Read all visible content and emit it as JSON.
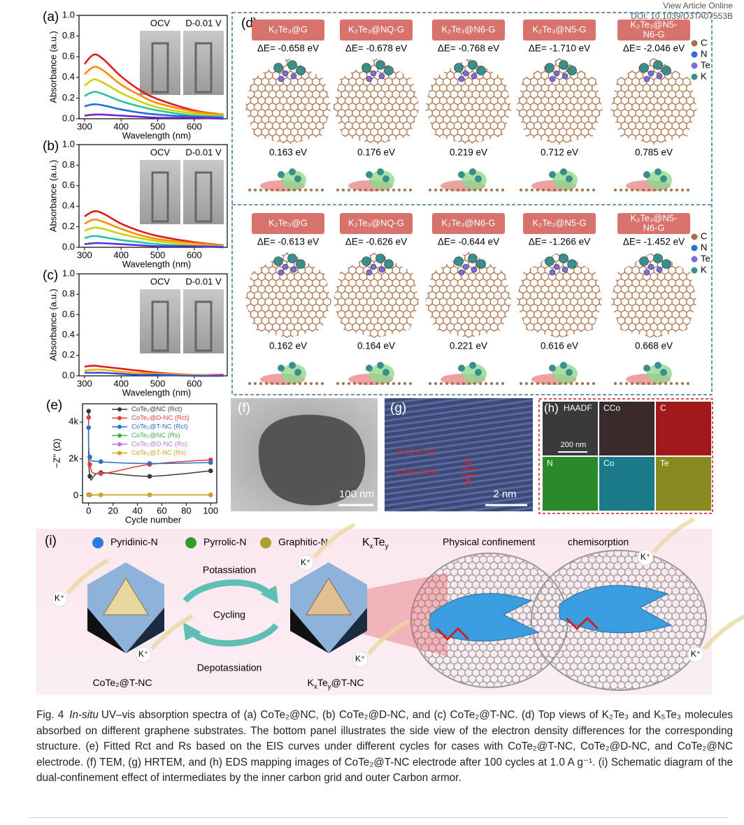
{
  "header": {
    "link": "View Article Online",
    "doi": "DOI: 10.1039/D3TA07553B"
  },
  "chart_data": [
    {
      "type": "line",
      "panel_label": "(a)",
      "xlabel": "Wavelength (nm)",
      "ylabel": "Absorbance (a.u.)",
      "x": [
        300,
        325,
        350,
        400,
        450,
        500,
        600,
        680
      ],
      "series": [
        {
          "color": "#e31a1c",
          "values": [
            0.53,
            0.62,
            0.58,
            0.41,
            0.28,
            0.19,
            0.08,
            0.04
          ]
        },
        {
          "color": "#ff8c00",
          "values": [
            0.43,
            0.5,
            0.47,
            0.33,
            0.23,
            0.15,
            0.07,
            0.04
          ]
        },
        {
          "color": "#c8d400",
          "values": [
            0.32,
            0.38,
            0.35,
            0.25,
            0.17,
            0.11,
            0.05,
            0.03
          ]
        },
        {
          "color": "#22c8a0",
          "values": [
            0.22,
            0.26,
            0.24,
            0.17,
            0.12,
            0.08,
            0.03,
            0.02
          ]
        },
        {
          "color": "#1e6fe0",
          "values": [
            0.12,
            0.14,
            0.13,
            0.09,
            0.06,
            0.04,
            0.02,
            0.01
          ]
        },
        {
          "color": "#7b1fd0",
          "values": [
            0.03,
            0.04,
            0.04,
            0.03,
            0.02,
            0.01,
            0.01,
            0.0
          ]
        }
      ],
      "xlim": [
        285,
        690
      ],
      "ylim": [
        0,
        1
      ],
      "xticks": [
        300,
        400,
        500,
        600
      ],
      "yticks": [
        {
          "value": 0,
          "label": "0.0"
        },
        {
          "value": 0.2,
          "label": "0.2"
        },
        {
          "value": 0.4,
          "label": "0.4"
        },
        {
          "value": 0.6,
          "label": "0.6"
        },
        {
          "value": 0.8,
          "label": "0.8"
        },
        {
          "value": 1,
          "label": "1.0"
        }
      ],
      "photo_labels": [
        "OCV",
        "D-0.01 V"
      ]
    },
    {
      "type": "line",
      "panel_label": "(b)",
      "xlabel": "Wavelength (nm)",
      "ylabel": "Absorbance (a.u.)",
      "x": [
        300,
        325,
        350,
        400,
        450,
        500,
        600,
        680
      ],
      "series": [
        {
          "color": "#e31a1c",
          "values": [
            0.3,
            0.35,
            0.33,
            0.23,
            0.16,
            0.11,
            0.05,
            0.02
          ]
        },
        {
          "color": "#ff8c00",
          "values": [
            0.23,
            0.27,
            0.25,
            0.18,
            0.12,
            0.08,
            0.04,
            0.02
          ]
        },
        {
          "color": "#c8d400",
          "values": [
            0.16,
            0.19,
            0.18,
            0.13,
            0.09,
            0.06,
            0.02,
            0.01
          ]
        },
        {
          "color": "#22c8a0",
          "values": [
            0.09,
            0.11,
            0.1,
            0.07,
            0.05,
            0.03,
            0.01,
            0.01
          ]
        },
        {
          "color": "#5a2fe0",
          "values": [
            0.03,
            0.04,
            0.04,
            0.03,
            0.02,
            0.01,
            0.01,
            0.0
          ]
        }
      ],
      "xlim": [
        285,
        690
      ],
      "ylim": [
        0,
        1
      ],
      "xticks": [
        300,
        400,
        500,
        600
      ],
      "yticks": [
        {
          "value": 0,
          "label": "0.0"
        },
        {
          "value": 0.2,
          "label": "0.2"
        },
        {
          "value": 0.4,
          "label": "0.4"
        },
        {
          "value": 0.6,
          "label": "0.6"
        },
        {
          "value": 0.8,
          "label": "0.8"
        },
        {
          "value": 1,
          "label": "1.0"
        }
      ],
      "photo_labels": [
        "OCV",
        "D-0.01 V"
      ]
    },
    {
      "type": "line",
      "panel_label": "(c)",
      "xlabel": "Wavelength (nm)",
      "ylabel": "Absorbance (a.u.)",
      "x": [
        300,
        325,
        350,
        400,
        450,
        500,
        600,
        680
      ],
      "series": [
        {
          "color": "#e31a1c",
          "values": [
            0.09,
            0.1,
            0.09,
            0.07,
            0.05,
            0.03,
            0.01,
            0.01
          ]
        },
        {
          "color": "#ffb000",
          "values": [
            0.05,
            0.06,
            0.06,
            0.04,
            0.03,
            0.02,
            0.01,
            0.0
          ]
        },
        {
          "color": "#3050e0",
          "values": [
            0.03,
            0.03,
            0.03,
            0.02,
            0.01,
            0.01,
            0.0,
            0.0
          ]
        }
      ],
      "xlim": [
        285,
        690
      ],
      "ylim": [
        0,
        1
      ],
      "xticks": [
        300,
        400,
        500,
        600
      ],
      "yticks": [
        {
          "value": 0,
          "label": "0.0"
        },
        {
          "value": 0.2,
          "label": "0.2"
        },
        {
          "value": 0.4,
          "label": "0.4"
        },
        {
          "value": 0.6,
          "label": "0.6"
        },
        {
          "value": 0.8,
          "label": "0.8"
        },
        {
          "value": 1,
          "label": "1.0"
        }
      ],
      "photo_labels": [
        "OCV",
        "D-0.01 V"
      ]
    },
    {
      "type": "line",
      "panel_label": "(e)",
      "xlabel": "Cycle number",
      "ylabel": "−Z'' (Ω)",
      "markers": true,
      "legend": "upper right",
      "x": [
        0,
        1,
        10,
        50,
        100
      ],
      "series": [
        {
          "name": "CoTe₂@NC (Rct)",
          "color": "#3a3a3a",
          "values": [
            4600,
            1050,
            1250,
            1050,
            1350
          ]
        },
        {
          "name": "CoTe₂@D-NC (Rct)",
          "color": "#e0403a",
          "values": [
            4250,
            1700,
            1200,
            1700,
            1950
          ]
        },
        {
          "name": "CoTe₂@T-NC (Rct)",
          "color": "#2a70c8",
          "values": [
            3700,
            2100,
            1850,
            1750,
            1800
          ]
        },
        {
          "name": "CoTe₂@NC (Rs)",
          "color": "#3cb44b",
          "values": [
            50,
            40,
            40,
            40,
            40
          ]
        },
        {
          "name": "CoTe₂@D-NC (Rs)",
          "color": "#b07ad8",
          "values": [
            50,
            40,
            40,
            40,
            40
          ]
        },
        {
          "name": "CoTe₂@T-NC (Rs)",
          "color": "#d4a020",
          "values": [
            50,
            40,
            40,
            40,
            40
          ]
        }
      ],
      "xlim": [
        -5,
        105
      ],
      "ylim": [
        -400,
        5000
      ],
      "xticks": [
        0,
        20,
        40,
        60,
        80,
        100
      ],
      "yticks": [
        0,
        {
          "value": 2000,
          "label": "2k"
        },
        {
          "value": 4000,
          "label": "4k"
        }
      ]
    }
  ],
  "d": {
    "label": "(d)",
    "rows": [
      {
        "items": [
          {
            "name": [
              "K₂Te₃@G"
            ],
            "delta_e": "ΔE= -0.658 eV",
            "side_energy": "0.163 eV"
          },
          {
            "name": [
              "K₂Te₃@NQ-G"
            ],
            "delta_e": "ΔE= -0.678 eV",
            "side_energy": "0.176 eV"
          },
          {
            "name": [
              "K₂Te₃@N6-G"
            ],
            "delta_e": "ΔE= -0.768 eV",
            "side_energy": "0.219 eV"
          },
          {
            "name": [
              "K₂Te₃@N5-G"
            ],
            "delta_e": "ΔE= -1.710 eV",
            "side_energy": "0.712 eV"
          },
          {
            "name": [
              "K₂Te₃@N5-",
              "N6-G"
            ],
            "delta_e": "ΔE= -2.046 eV",
            "side_energy": "0.785 eV"
          }
        ],
        "legend": [
          "C",
          "N",
          "Te",
          "K"
        ]
      },
      {
        "items": [
          {
            "name": [
              "K₂Te₃@G"
            ],
            "delta_e": "ΔE= -0.613 eV",
            "side_energy": "0.162 eV"
          },
          {
            "name": [
              "K₂Te₃@NQ-G"
            ],
            "delta_e": "ΔE= -0.626 eV",
            "side_energy": "0.164 eV"
          },
          {
            "name": [
              "K₂Te₃@N6-G"
            ],
            "delta_e": "ΔE= -0.644 eV",
            "side_energy": "0.221 eV"
          },
          {
            "name": [
              "K₂Te₃@N5-G"
            ],
            "delta_e": "ΔE= -1.266 eV",
            "side_energy": "0.616 eV"
          },
          {
            "name": [
              "K₂Te₃@N5-",
              "N6-G"
            ],
            "delta_e": "ΔE= -1.452 eV",
            "side_energy": "0.668 eV"
          }
        ],
        "legend": [
          "C",
          "N",
          "Te",
          "K"
        ]
      }
    ]
  },
  "f": {
    "label": "(f)",
    "scale": "100 nm"
  },
  "g": {
    "label": "(g)",
    "d_spacing": "d=0.272 nm",
    "plane": "CoTe₂ (120)",
    "scale": "2 nm"
  },
  "h": {
    "label": "(h)",
    "tiles": [
      "HAADF",
      "CCo",
      "C",
      "N",
      "Co",
      "Te"
    ],
    "scale": "200 nm"
  },
  "i": {
    "label": "(i)",
    "legend": [
      "Pyridinic-N",
      "Pyrrolic-N",
      "Graphitic-N"
    ],
    "formula": [
      "K",
      "x",
      "Te",
      "y"
    ],
    "confinement": "Physical confinement",
    "chemisorption": "chemisorption",
    "potassiation": "Potassiation",
    "cycling": "Cycling",
    "depotassiation": "Depotassiation",
    "left_label": [
      "CoTe₂@T-NC"
    ],
    "right_label": [
      "K",
      "x",
      "Te",
      "y",
      "@T-NC"
    ],
    "k_ions": [
      "K⁺",
      "K⁺",
      "K⁺",
      "K⁺",
      "K⁺",
      "K⁺"
    ]
  },
  "caption": {
    "label": "Fig. 4",
    "italic": "In-situ",
    "text": "UV–vis absorption spectra of (a) CoTe₂@NC, (b) CoTe₂@D-NC, and (c) CoTe₂@T-NC. (d) Top views of K₂Te₃ and K₅Te₃ molecules absorbed on different graphene substrates. The bottom panel illustrates the side view of the electron density differences for the corresponding structure. (e) Fitted Rct and Rs based on the EIS curves under different cycles for cases with CoTe₂@T-NC, CoTe₂@D-NC, and CoTe₂@NC electrode. (f) TEM, (g) HRTEM, and (h) EDS mapping images of CoTe₂@T-NC electrode after 100 cycles at 1.0 A g⁻¹. (i) Schematic diagram of the dual-confinement effect of intermediates by the inner carbon grid and outer Carbon armor."
  }
}
